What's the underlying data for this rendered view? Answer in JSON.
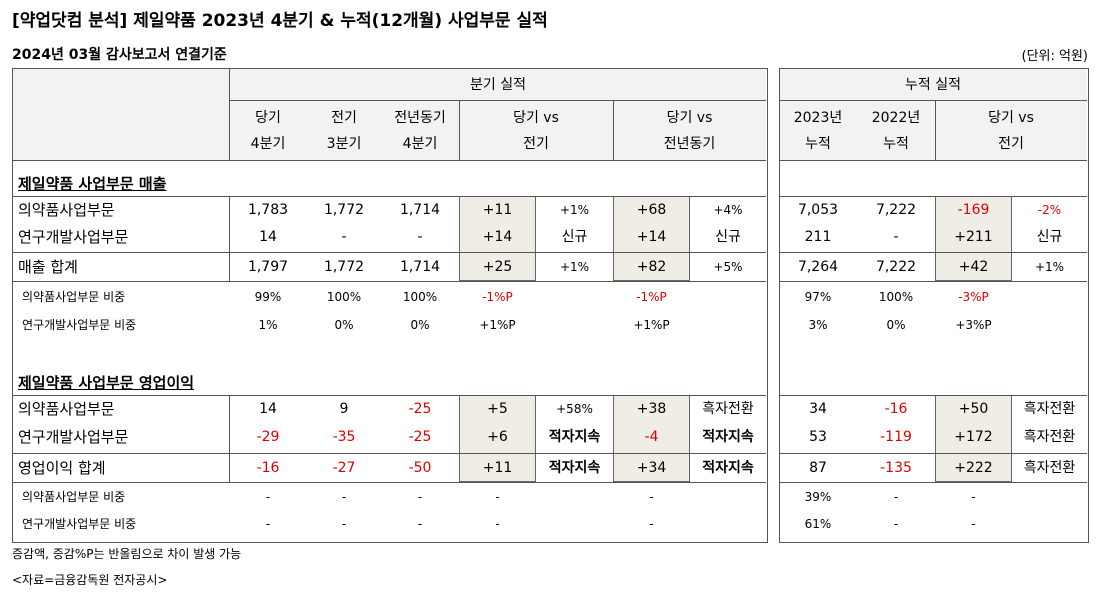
{
  "title": "[약업닷컴 분석] 제일약품 2023년 4분기 & 누적(12개월) 사업부문 실적",
  "subtitle": "2024년 03월 감사보고서 연결기준",
  "unit": "(단위: 억원)",
  "headers": {
    "quarter_group": "분기 실적",
    "cumulative_group": "누적 실적",
    "cur_q": [
      "당기",
      "4분기"
    ],
    "prev_q": [
      "전기",
      "3분기"
    ],
    "yoy_q": [
      "전년동기",
      "4분기"
    ],
    "vs_prev": [
      "당기 vs",
      "전기"
    ],
    "vs_yoy": [
      "당기 vs",
      "전년동기"
    ],
    "y2023": [
      "2023년",
      "누적"
    ],
    "y2022": [
      "2022년",
      "누적"
    ],
    "vs_cum": [
      "당기 vs",
      "전기"
    ]
  },
  "sections": {
    "sales": "제일약품 사업부문 매출",
    "op": "제일약품 사업부문 영업이익"
  },
  "sales_rows": [
    {
      "label": "의약품사업부문",
      "cur": "1,783",
      "prev": "1,772",
      "yoy": "1,714",
      "d_prev": "+11",
      "r_prev": "+1%",
      "d_yoy": "+68",
      "r_yoy": "+4%",
      "c23": "7,053",
      "c22": "7,222",
      "d_cum": "-169",
      "r_cum": "-2%"
    },
    {
      "label": "연구개발사업부문",
      "cur": "14",
      "prev": "-",
      "yoy": "-",
      "d_prev": "+14",
      "r_prev": "신규",
      "d_yoy": "+14",
      "r_yoy": "신규",
      "c23": "211",
      "c22": "-",
      "d_cum": "+211",
      "r_cum": "신규"
    },
    {
      "label": "매출 합계",
      "cur": "1,797",
      "prev": "1,772",
      "yoy": "1,714",
      "d_prev": "+25",
      "r_prev": "+1%",
      "d_yoy": "+82",
      "r_yoy": "+5%",
      "c23": "7,264",
      "c22": "7,222",
      "d_cum": "+42",
      "r_cum": "+1%"
    }
  ],
  "sales_ratio_rows": [
    {
      "label": "의약품사업부문 비중",
      "cur": "99%",
      "prev": "100%",
      "yoy": "100%",
      "d_prev": "-1%P",
      "d_yoy": "-1%P",
      "c23": "97%",
      "c22": "100%",
      "d_cum": "-3%P"
    },
    {
      "label": "연구개발사업부문 비중",
      "cur": "1%",
      "prev": "0%",
      "yoy": "0%",
      "d_prev": "+1%P",
      "d_yoy": "+1%P",
      "c23": "3%",
      "c22": "0%",
      "d_cum": "+3%P"
    }
  ],
  "op_rows": [
    {
      "label": "의약품사업부문",
      "cur": "14",
      "prev": "9",
      "yoy": "-25",
      "d_prev": "+5",
      "r_prev": "+58%",
      "d_yoy": "+38",
      "r_yoy": "흑자전환",
      "c23": "34",
      "c22": "-16",
      "d_cum": "+50",
      "r_cum": "흑자전환"
    },
    {
      "label": "연구개발사업부문",
      "cur": "-29",
      "prev": "-35",
      "yoy": "-25",
      "d_prev": "+6",
      "r_prev": "적자지속",
      "d_yoy": "-4",
      "r_yoy": "적자지속",
      "c23": "53",
      "c22": "-119",
      "d_cum": "+172",
      "r_cum": "흑자전환"
    },
    {
      "label": "영업이익 합계",
      "cur": "-16",
      "prev": "-27",
      "yoy": "-50",
      "d_prev": "+11",
      "r_prev": "적자지속",
      "d_yoy": "+34",
      "r_yoy": "적자지속",
      "c23": "87",
      "c22": "-135",
      "d_cum": "+222",
      "r_cum": "흑자전환"
    }
  ],
  "op_ratio_rows": [
    {
      "label": "의약품사업부문 비중",
      "cur": "-",
      "prev": "-",
      "yoy": "-",
      "d_prev": "-",
      "d_yoy": "-",
      "c23": "39%",
      "c22": "-",
      "d_cum": "-"
    },
    {
      "label": "연구개발사업부문 비중",
      "cur": "-",
      "prev": "-",
      "yoy": "-",
      "d_prev": "-",
      "d_yoy": "-",
      "c23": "61%",
      "c22": "-",
      "d_cum": "-"
    }
  ],
  "footnote1": "증감액, 증감%P는 반올림으로 차이 발생 가능",
  "footnote2": "<자료=금융감독원 전자공시>",
  "colors": {
    "negative": "#e00000",
    "shade": "#efede6",
    "header_bg": "#f2f2f2"
  }
}
